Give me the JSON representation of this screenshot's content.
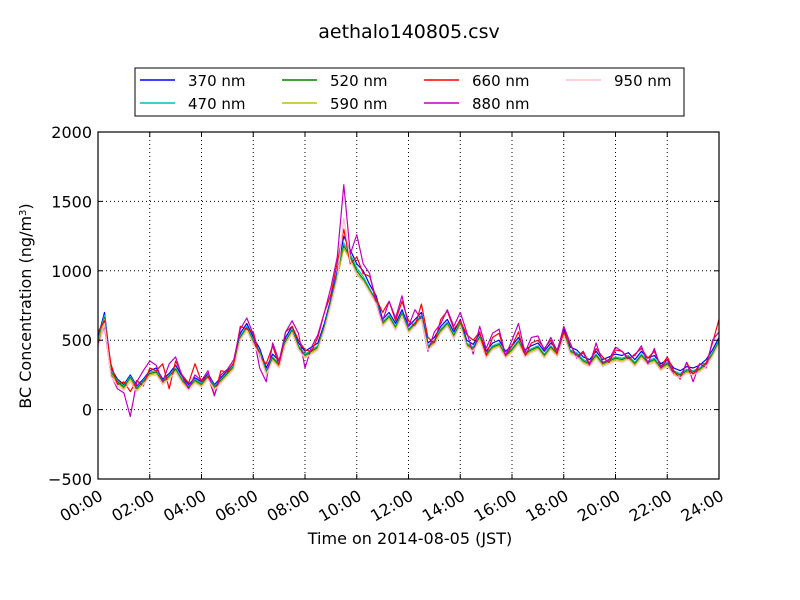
{
  "chart_data": {
    "type": "line",
    "title": "aethalo140805.csv",
    "xlabel": "Time on 2014-08-05 (JST)",
    "ylabel_main": "BC Concentration (ng/m",
    "ylabel_sup": "3",
    "ylabel_close": ")",
    "xlim": [
      0,
      24
    ],
    "ylim": [
      -500,
      2000
    ],
    "grid": true,
    "legend_position": "top, above plot, 4 columns",
    "x_ticks": [
      {
        "value": 0,
        "label": "00:00"
      },
      {
        "value": 2,
        "label": "02:00"
      },
      {
        "value": 4,
        "label": "04:00"
      },
      {
        "value": 6,
        "label": "06:00"
      },
      {
        "value": 8,
        "label": "08:00"
      },
      {
        "value": 10,
        "label": "10:00"
      },
      {
        "value": 12,
        "label": "12:00"
      },
      {
        "value": 14,
        "label": "14:00"
      },
      {
        "value": 16,
        "label": "16:00"
      },
      {
        "value": 18,
        "label": "18:00"
      },
      {
        "value": 20,
        "label": "20:00"
      },
      {
        "value": 22,
        "label": "22:00"
      },
      {
        "value": 24,
        "label": "24:00"
      }
    ],
    "y_ticks": [
      {
        "value": -500,
        "label": "−500"
      },
      {
        "value": 0,
        "label": "0"
      },
      {
        "value": 500,
        "label": "500"
      },
      {
        "value": 1000,
        "label": "1000"
      },
      {
        "value": 1500,
        "label": "1500"
      },
      {
        "value": 2000,
        "label": "2000"
      }
    ],
    "x_hours": [
      0,
      0.25,
      0.5,
      0.75,
      1,
      1.25,
      1.5,
      1.75,
      2,
      2.25,
      2.5,
      2.75,
      3,
      3.25,
      3.5,
      3.75,
      4,
      4.25,
      4.5,
      4.75,
      5,
      5.25,
      5.5,
      5.75,
      6,
      6.25,
      6.5,
      6.75,
      7,
      7.25,
      7.5,
      7.75,
      8,
      8.25,
      8.5,
      8.75,
      9,
      9.25,
      9.5,
      9.75,
      10,
      10.25,
      10.5,
      10.75,
      11,
      11.25,
      11.5,
      11.75,
      12,
      12.25,
      12.5,
      12.75,
      13,
      13.25,
      13.5,
      13.75,
      14,
      14.25,
      14.5,
      14.75,
      15,
      15.25,
      15.5,
      15.75,
      16,
      16.25,
      16.5,
      16.75,
      17,
      17.25,
      17.5,
      17.75,
      18,
      18.25,
      18.5,
      18.75,
      19,
      19.25,
      19.5,
      19.75,
      20,
      20.25,
      20.5,
      20.75,
      21,
      21.25,
      21.5,
      21.75,
      22,
      22.25,
      22.5,
      22.75,
      23,
      23.25,
      23.5,
      23.75,
      24
    ],
    "series": [
      {
        "name": "370 nm",
        "color": "#0000ff",
        "values": [
          520,
          700,
          300,
          220,
          180,
          250,
          170,
          220,
          280,
          300,
          220,
          260,
          320,
          240,
          180,
          230,
          200,
          260,
          180,
          230,
          280,
          330,
          550,
          620,
          520,
          440,
          300,
          400,
          350,
          520,
          600,
          480,
          420,
          450,
          480,
          620,
          800,
          1000,
          1250,
          1150,
          1050,
          1000,
          900,
          820,
          650,
          700,
          620,
          720,
          600,
          650,
          700,
          480,
          520,
          600,
          650,
          560,
          650,
          500,
          470,
          550,
          420,
          480,
          500,
          420,
          460,
          520,
          430,
          460,
          480,
          420,
          480,
          430,
          580,
          450,
          430,
          380,
          360,
          420,
          360,
          380,
          400,
          390,
          410,
          360,
          420,
          370,
          390,
          330,
          360,
          300,
          280,
          310,
          300,
          320,
          360,
          430,
          520
        ]
      },
      {
        "name": "470 nm",
        "color": "#00bfbf",
        "values": [
          500,
          680,
          280,
          210,
          170,
          240,
          160,
          210,
          270,
          280,
          210,
          250,
          300,
          220,
          170,
          220,
          190,
          250,
          170,
          220,
          270,
          320,
          530,
          600,
          500,
          420,
          280,
          380,
          330,
          500,
          580,
          460,
          400,
          430,
          460,
          600,
          780,
          980,
          1200,
          1120,
          1020,
          960,
          870,
          790,
          630,
          680,
          600,
          700,
          580,
          630,
          680,
          460,
          500,
          580,
          630,
          540,
          630,
          480,
          450,
          530,
          400,
          460,
          480,
          400,
          440,
          500,
          410,
          440,
          460,
          400,
          460,
          410,
          560,
          430,
          410,
          360,
          340,
          400,
          340,
          360,
          380,
          370,
          390,
          340,
          400,
          350,
          370,
          310,
          340,
          280,
          260,
          290,
          280,
          300,
          340,
          410,
          500
        ]
      },
      {
        "name": "520 nm",
        "color": "#008000",
        "values": [
          490,
          660,
          270,
          200,
          160,
          230,
          150,
          200,
          260,
          270,
          200,
          240,
          290,
          210,
          160,
          210,
          180,
          240,
          160,
          210,
          260,
          310,
          520,
          590,
          490,
          410,
          270,
          370,
          320,
          490,
          570,
          450,
          390,
          420,
          450,
          590,
          770,
          960,
          1180,
          1100,
          1000,
          940,
          860,
          780,
          620,
          670,
          590,
          690,
          570,
          620,
          670,
          450,
          490,
          570,
          620,
          530,
          620,
          470,
          440,
          520,
          390,
          450,
          470,
          390,
          430,
          490,
          400,
          430,
          450,
          390,
          450,
          400,
          550,
          420,
          400,
          350,
          330,
          390,
          330,
          350,
          370,
          360,
          380,
          330,
          390,
          340,
          360,
          300,
          330,
          270,
          250,
          280,
          270,
          290,
          330,
          400,
          490
        ]
      },
      {
        "name": "590 nm",
        "color": "#bfbf00",
        "values": [
          480,
          650,
          260,
          190,
          150,
          220,
          140,
          190,
          250,
          260,
          190,
          230,
          280,
          200,
          150,
          200,
          170,
          230,
          150,
          200,
          250,
          300,
          510,
          580,
          480,
          400,
          260,
          360,
          310,
          480,
          560,
          440,
          380,
          410,
          440,
          580,
          760,
          950,
          1160,
          1080,
          980,
          930,
          850,
          770,
          610,
          660,
          580,
          680,
          560,
          610,
          660,
          440,
          480,
          560,
          610,
          520,
          610,
          460,
          430,
          510,
          380,
          440,
          460,
          380,
          420,
          480,
          390,
          420,
          440,
          380,
          440,
          390,
          540,
          410,
          390,
          340,
          320,
          380,
          320,
          340,
          360,
          350,
          370,
          320,
          380,
          330,
          350,
          290,
          320,
          260,
          240,
          270,
          260,
          280,
          320,
          390,
          480
        ]
      },
      {
        "name": "660 nm",
        "color": "#ff0000",
        "values": [
          560,
          640,
          330,
          180,
          200,
          130,
          210,
          170,
          300,
          280,
          330,
          150,
          350,
          250,
          190,
          330,
          200,
          240,
          100,
          280,
          270,
          340,
          600,
          580,
          560,
          380,
          330,
          460,
          320,
          560,
          600,
          500,
          430,
          420,
          520,
          700,
          830,
          1060,
          1300,
          1050,
          1100,
          980,
          960,
          800,
          700,
          780,
          640,
          780,
          640,
          600,
          760,
          520,
          480,
          650,
          710,
          580,
          640,
          540,
          500,
          560,
          390,
          520,
          550,
          390,
          460,
          560,
          380,
          480,
          500,
          440,
          500,
          400,
          560,
          470,
          380,
          420,
          330,
          440,
          380,
          340,
          430,
          420,
          360,
          400,
          440,
          370,
          420,
          310,
          380,
          280,
          220,
          340,
          250,
          330,
          330,
          480,
          650
        ]
      },
      {
        "name": "880 nm",
        "color": "#bf00bf",
        "values": [
          470,
          600,
          250,
          150,
          120,
          -50,
          200,
          280,
          350,
          320,
          200,
          330,
          380,
          240,
          150,
          250,
          210,
          280,
          100,
          250,
          290,
          360,
          580,
          660,
          540,
          300,
          200,
          480,
          350,
          560,
          640,
          550,
          300,
          450,
          540,
          700,
          880,
          1100,
          1620,
          1120,
          1260,
          1050,
          980,
          760,
          640,
          780,
          660,
          820,
          600,
          720,
          650,
          420,
          560,
          620,
          720,
          600,
          700,
          560,
          400,
          600,
          440,
          550,
          580,
          390,
          500,
          620,
          410,
          520,
          530,
          430,
          520,
          420,
          600,
          480,
          370,
          410,
          320,
          480,
          340,
          360,
          450,
          420,
          370,
          390,
          460,
          330,
          440,
          300,
          360,
          250,
          230,
          340,
          200,
          330,
          300,
          500,
          560
        ]
      },
      {
        "name": "950 nm",
        "color": "#ffc0cb",
        "values": [
          440,
          620,
          240,
          170,
          140,
          200,
          130,
          180,
          240,
          250,
          180,
          220,
          270,
          190,
          140,
          190,
          160,
          220,
          140,
          190,
          240,
          290,
          500,
          570,
          470,
          390,
          250,
          350,
          300,
          470,
          550,
          430,
          370,
          400,
          430,
          570,
          750,
          940,
          1380,
          1070,
          970,
          920,
          840,
          760,
          600,
          650,
          570,
          670,
          550,
          600,
          650,
          430,
          470,
          550,
          600,
          510,
          600,
          450,
          420,
          500,
          370,
          430,
          450,
          370,
          410,
          470,
          380,
          410,
          430,
          370,
          430,
          380,
          530,
          400,
          380,
          330,
          310,
          370,
          310,
          330,
          350,
          340,
          360,
          310,
          370,
          320,
          340,
          280,
          310,
          250,
          230,
          260,
          250,
          270,
          310,
          380,
          470
        ]
      }
    ]
  }
}
